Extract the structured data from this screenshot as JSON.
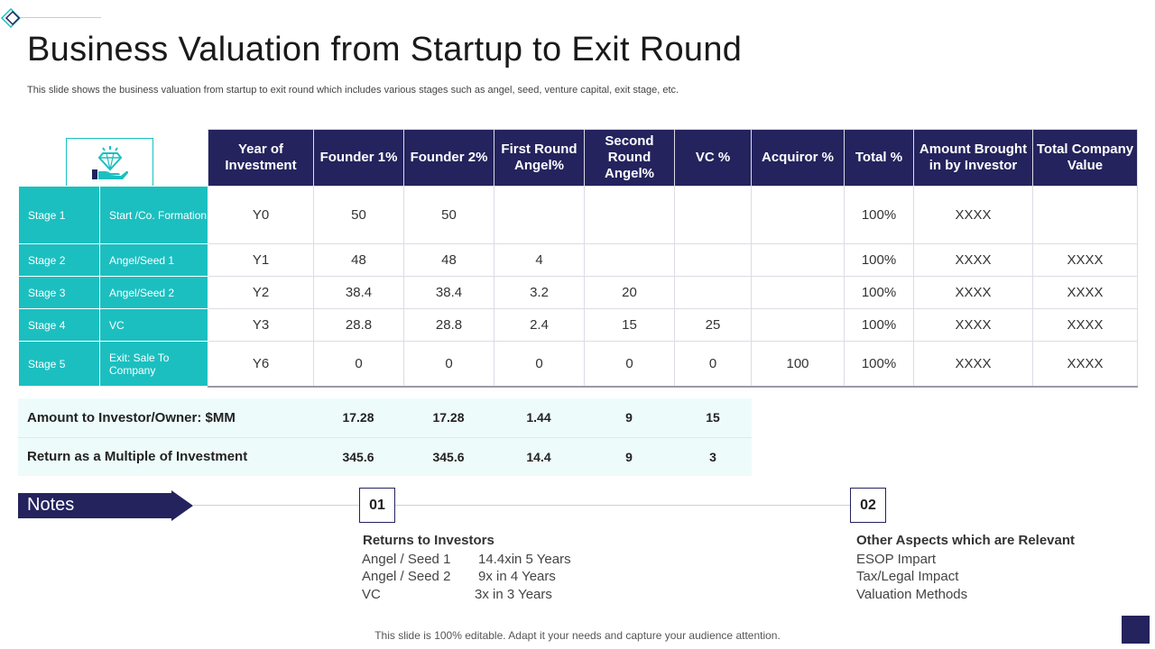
{
  "title": "Business Valuation from Startup to Exit Round",
  "subtitle": "This slide shows the business valuation from startup to exit round which includes various stages such as angel, seed, venture capital, exit stage, etc.",
  "icons": {
    "corner": "diamond-outline-icon",
    "header": "diamond-in-hand-icon"
  },
  "colors": {
    "navy": "#24235e",
    "teal": "#1cbfc0",
    "light_teal": "#eefbfb"
  },
  "table": {
    "columns": [
      "Year of Investment",
      "Founder 1%",
      "Founder 2%",
      "First Round Angel%",
      "Second Round Angel%",
      "VC %",
      "Acquiror %",
      "Total %",
      "Amount Brought in by Investor",
      "Total Company Value"
    ],
    "rows": [
      {
        "stage": "Stage 1",
        "desc": "Start /Co. Formation",
        "cells": [
          "Y0",
          "50",
          "50",
          "",
          "",
          "",
          "",
          "100%",
          "XXXX",
          ""
        ]
      },
      {
        "stage": "Stage 2",
        "desc": "Angel/Seed 1",
        "cells": [
          "Y1",
          "48",
          "48",
          "4",
          "",
          "",
          "",
          "100%",
          "XXXX",
          "XXXX"
        ]
      },
      {
        "stage": "Stage 3",
        "desc": "Angel/Seed 2",
        "cells": [
          "Y2",
          "38.4",
          "38.4",
          "3.2",
          "20",
          "",
          "",
          "100%",
          "XXXX",
          "XXXX"
        ]
      },
      {
        "stage": "Stage 4",
        "desc": "VC",
        "cells": [
          "Y3",
          "28.8",
          "28.8",
          "2.4",
          "15",
          "25",
          "",
          "100%",
          "XXXX",
          "XXXX"
        ]
      },
      {
        "stage": "Stage 5",
        "desc": "Exit: Sale To Company",
        "cells": [
          "Y6",
          "0",
          "0",
          "0",
          "0",
          "0",
          "100",
          "100%",
          "XXXX",
          "XXXX"
        ]
      }
    ]
  },
  "summary": [
    {
      "label": "Amount to Investor/Owner: $MM",
      "values": [
        "17.28",
        "17.28",
        "1.44",
        "9",
        "15"
      ]
    },
    {
      "label": "Return as a Multiple of Investment",
      "values": [
        "345.6",
        "345.6",
        "14.4",
        "9",
        "3"
      ]
    }
  ],
  "notes": {
    "label": "Notes",
    "items": [
      {
        "number": "01",
        "title": "Returns to Investors",
        "lines": [
          {
            "name": "Angel / Seed 1",
            "value": "14.4xin 5 Years"
          },
          {
            "name": "Angel / Seed 2",
            "value": "9x in 4 Years"
          },
          {
            "name": "VC",
            "value": "3x in 3 Years"
          }
        ]
      },
      {
        "number": "02",
        "title": "Other Aspects which are Relevant",
        "lines": [
          "ESOP Impart",
          "Tax/Legal Impact",
          "Valuation Methods"
        ]
      }
    ]
  },
  "footer": "This slide is 100% editable. Adapt it your needs and capture your audience attention."
}
